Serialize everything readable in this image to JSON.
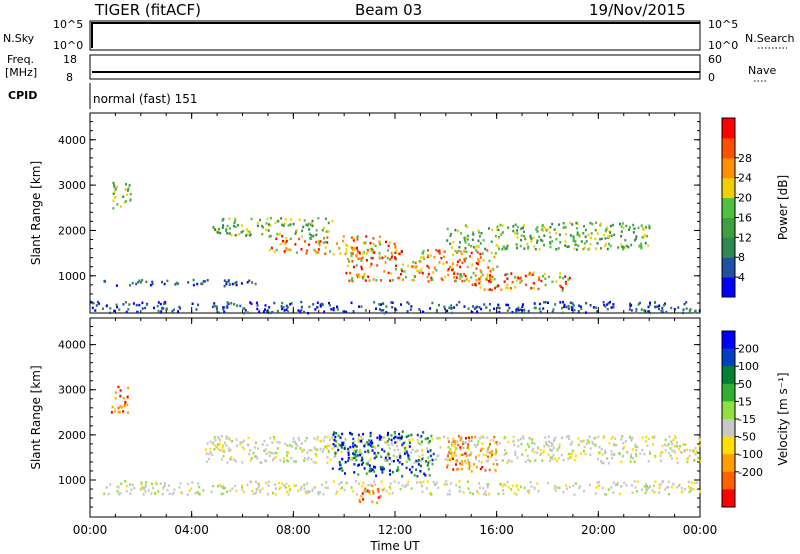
{
  "header": {
    "title": "TIGER (fitACF)",
    "beam": "Beam 03",
    "date": "19/Nov/2015"
  },
  "status_panel": {
    "nsky_label": "N.Sky",
    "nsearch_label": "N.Search",
    "noise_ticks_left": [
      "10^5",
      "10^0"
    ],
    "noise_ticks_right": [
      "10^5",
      "10^0"
    ],
    "freq_label_1": "Freq.",
    "freq_label_2": "[MHz]",
    "freq_ticks": [
      "18",
      "8"
    ],
    "nave_label": "Nave",
    "nave_ticks": [
      "60",
      "0"
    ],
    "cpid_label": "CPID",
    "cpid_text": "normal (fast) 151"
  },
  "colors": {
    "power": [
      "#0000ff",
      "#2050a0",
      "#308850",
      "#40a040",
      "#50c040",
      "#f0d000",
      "#ff9000",
      "#ff5000",
      "#ff0000"
    ],
    "velocity": [
      "#0000ff",
      "#0040c0",
      "#008030",
      "#30b030",
      "#90e040",
      "#c8c8c8",
      "#ffe000",
      "#ffa000",
      "#ff6000",
      "#ff0000"
    ]
  },
  "chart_data": [
    {
      "type": "heatmap",
      "ylabel": "Slant Range [km]",
      "xlabel": "Time UT",
      "x_ticks": [
        "00:00",
        "04:00",
        "08:00",
        "12:00",
        "16:00",
        "20:00",
        "00:00"
      ],
      "y_ticks": [
        "1000",
        "2000",
        "3000",
        "4000"
      ],
      "ylim": [
        180,
        4590
      ],
      "xlim": [
        0,
        24
      ],
      "colorbar": {
        "label": "Power [dB]",
        "ticks": [
          "4",
          "8",
          "12",
          "16",
          "20",
          "24",
          "28"
        ]
      },
      "echo_regions": [
        {
          "t": [
            0.5,
            6.5
          ],
          "r": [
            800,
            950
          ],
          "level": "low"
        },
        {
          "t": [
            0,
            24
          ],
          "r": [
            200,
            450
          ],
          "level": "low"
        },
        {
          "t": [
            4.8,
            9.5
          ],
          "r": [
            1900,
            2300
          ],
          "level": "mid"
        },
        {
          "t": [
            7,
            12
          ],
          "r": [
            1500,
            1900
          ],
          "level": "high"
        },
        {
          "t": [
            10,
            16
          ],
          "r": [
            900,
            1600
          ],
          "level": "high"
        },
        {
          "t": [
            14,
            22
          ],
          "r": [
            1600,
            2200
          ],
          "level": "mid"
        },
        {
          "t": [
            15,
            19
          ],
          "r": [
            700,
            1100
          ],
          "level": "high"
        },
        {
          "t": [
            0.8,
            1.6
          ],
          "r": [
            2500,
            3100
          ],
          "level": "mid"
        }
      ]
    },
    {
      "type": "heatmap",
      "ylabel": "Slant Range [km]",
      "xlabel": "Time UT",
      "x_ticks": [
        "00:00",
        "04:00",
        "08:00",
        "12:00",
        "16:00",
        "20:00",
        "00:00"
      ],
      "y_ticks": [
        "1000",
        "2000",
        "3000",
        "4000"
      ],
      "ylim": [
        180,
        4590
      ],
      "xlim": [
        0,
        24
      ],
      "colorbar": {
        "label": "Velocity [m s⁻¹]",
        "ticks": [
          "200",
          "100",
          "50",
          "15",
          "-15",
          "-50",
          "-100",
          "-200"
        ]
      },
      "echo_regions": [
        {
          "t": [
            4.5,
            24
          ],
          "r": [
            1400,
            2000
          ],
          "level": "ground"
        },
        {
          "t": [
            0.5,
            24
          ],
          "r": [
            700,
            1000
          ],
          "level": "ground"
        },
        {
          "t": [
            9.5,
            13.5
          ],
          "r": [
            1100,
            2100
          ],
          "level": "toward"
        },
        {
          "t": [
            14,
            16
          ],
          "r": [
            1200,
            2000
          ],
          "level": "away"
        },
        {
          "t": [
            10.5,
            11.5
          ],
          "r": [
            500,
            900
          ],
          "level": "away"
        },
        {
          "t": [
            0.8,
            1.6
          ],
          "r": [
            2500,
            3100
          ],
          "level": "away"
        }
      ]
    }
  ]
}
